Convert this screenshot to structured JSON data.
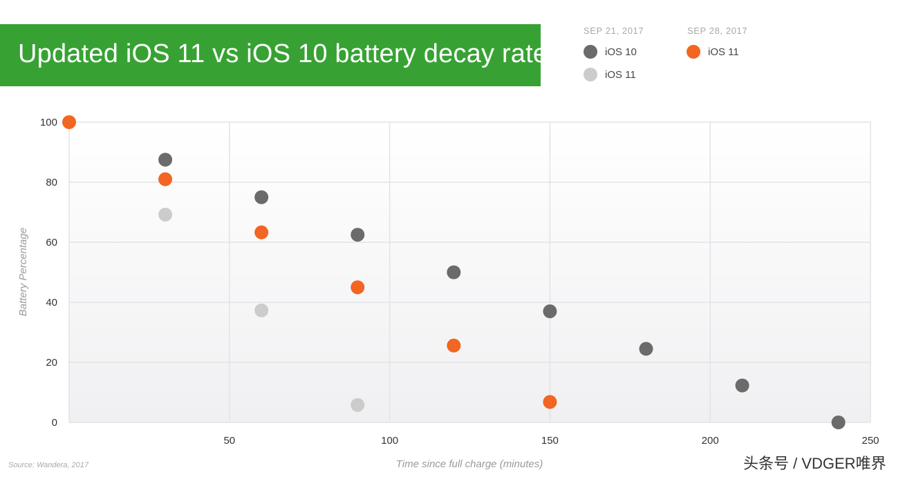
{
  "header": {
    "title": "Updated iOS 11 vs iOS 10 battery decay rate"
  },
  "legend": {
    "groups": [
      {
        "date": "SEP 21, 2017",
        "items": [
          {
            "label": "iOS 10",
            "color": "#6b6b6b"
          },
          {
            "label": "iOS 11",
            "color": "#cccccc"
          }
        ]
      },
      {
        "date": "SEP 28, 2017",
        "items": [
          {
            "label": "iOS 11",
            "color": "#f26522"
          }
        ]
      }
    ]
  },
  "chart_data": {
    "type": "scatter",
    "xlabel": "Time since full charge (minutes)",
    "ylabel": "Battery Percentage",
    "xlim": [
      0,
      250
    ],
    "ylim": [
      0,
      100
    ],
    "xticks": [
      50,
      100,
      150,
      200,
      250
    ],
    "yticks": [
      0,
      20,
      40,
      60,
      80,
      100
    ],
    "grid": true,
    "legend_position": "top-right",
    "series": [
      {
        "name": "iOS 10",
        "color": "#6b6b6b",
        "points": [
          [
            30,
            87.5
          ],
          [
            60,
            75
          ],
          [
            90,
            62.5
          ],
          [
            120,
            50
          ],
          [
            150,
            37
          ],
          [
            180,
            24.5
          ],
          [
            210,
            12.3
          ],
          [
            240,
            0
          ]
        ]
      },
      {
        "name": "iOS 11",
        "color": "#cccccc",
        "points": [
          [
            30,
            69.2
          ],
          [
            60,
            37.3
          ],
          [
            90,
            5.8
          ]
        ]
      },
      {
        "name": "iOS 11",
        "color": "#f26522",
        "points": [
          [
            0,
            100
          ],
          [
            30,
            81
          ],
          [
            60,
            63.3
          ],
          [
            90,
            45
          ],
          [
            120,
            25.6
          ],
          [
            150,
            6.8
          ]
        ]
      }
    ]
  },
  "footer": {
    "source": "Source: Wandera, 2017",
    "watermark": "头条号 / VDGER唯界"
  }
}
